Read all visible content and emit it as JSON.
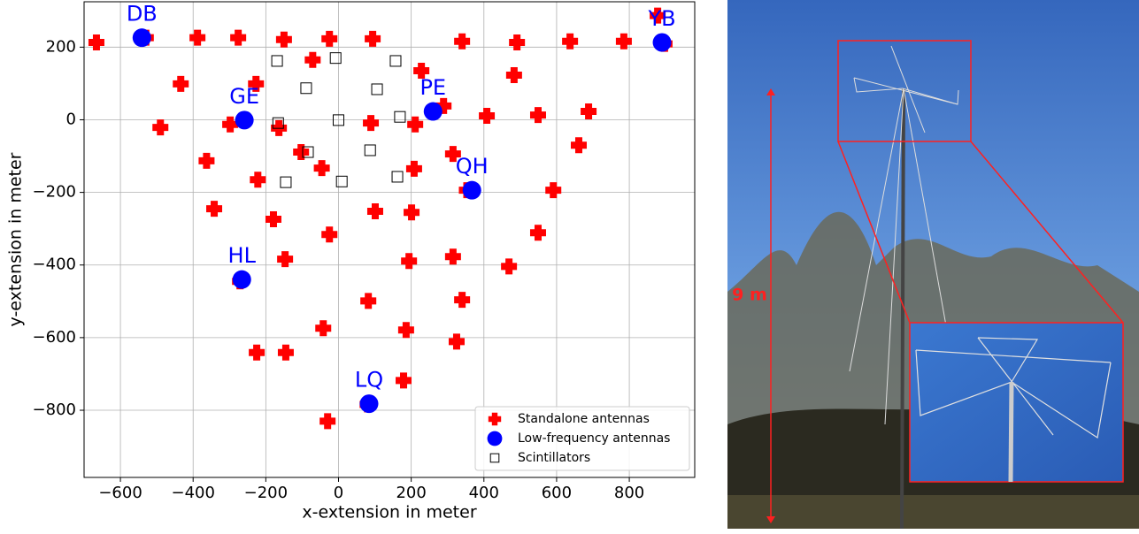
{
  "chart_data": {
    "type": "scatter",
    "xlabel": "x-extension in meter",
    "ylabel": "y-extension in meter",
    "xlim": [
      -700,
      980
    ],
    "ylim": [
      -985,
      325
    ],
    "xticks": [
      {
        "value": -600,
        "label": "−600"
      },
      {
        "value": -400,
        "label": "−400"
      },
      {
        "value": -200,
        "label": "−200"
      },
      0,
      200,
      400,
      600,
      800
    ],
    "yticks": [
      {
        "value": -800,
        "label": "−800"
      },
      {
        "value": -600,
        "label": "−600"
      },
      {
        "value": -400,
        "label": "−400"
      },
      {
        "value": -200,
        "label": "−200"
      },
      0,
      200
    ],
    "grid": true,
    "legend": "lower right",
    "series": [
      {
        "name": "Standalone antennas",
        "color": "#ff0000",
        "marker": "plus",
        "x": [
          -666,
          -530,
          -388,
          -276,
          -150,
          -25,
          94,
          340,
          491,
          637,
          785,
          878,
          897,
          -434,
          -227,
          -71,
          228,
          483,
          -490,
          -298,
          -164,
          89,
          211,
          289,
          408,
          549,
          688,
          661,
          -363,
          -103,
          -46,
          208,
          315,
          353,
          591,
          -222,
          -342,
          -179,
          101,
          201,
          -25,
          -147,
          194,
          315,
          469,
          549,
          -271,
          82,
          340,
          -42,
          186,
          325,
          -225,
          -145,
          179,
          80,
          -30
        ],
        "y": [
          213,
          226,
          226,
          226,
          221,
          223,
          223,
          216,
          213,
          216,
          216,
          287,
          209,
          99,
          99,
          165,
          135,
          123,
          -21,
          -13,
          -23,
          -9,
          -13,
          38,
          11,
          13,
          23,
          -70,
          -113,
          -89,
          -133,
          -135,
          -94,
          -194,
          -194,
          -165,
          -245,
          -274,
          -252,
          -255,
          -316,
          -384,
          -389,
          -377,
          -404,
          -311,
          -445,
          -499,
          -496,
          -574,
          -579,
          -611,
          -641,
          -641,
          -718,
          -784,
          -830
        ]
      },
      {
        "name": "Low-frequency antennas",
        "color": "#0000ff",
        "marker": "circle",
        "x": [
          -541,
          890,
          -259,
          260,
          367,
          -266,
          84
        ],
        "y": [
          226,
          213,
          -1,
          23,
          -194,
          -440,
          -782
        ],
        "labels": [
          "DB",
          "YB",
          "GE",
          "PE",
          "QH",
          "HL",
          "LQ"
        ]
      },
      {
        "name": "Scintillators",
        "color": "#000000",
        "marker": "square",
        "x": [
          -169,
          -8,
          157,
          -89,
          106,
          -166,
          0,
          169,
          -84,
          87,
          -145,
          9,
          162
        ],
        "y": [
          162,
          170,
          162,
          87,
          84,
          -9,
          -1,
          8,
          -89,
          -84,
          -172,
          -170,
          -157
        ]
      }
    ]
  },
  "photo": {
    "annotation": "9 m"
  }
}
